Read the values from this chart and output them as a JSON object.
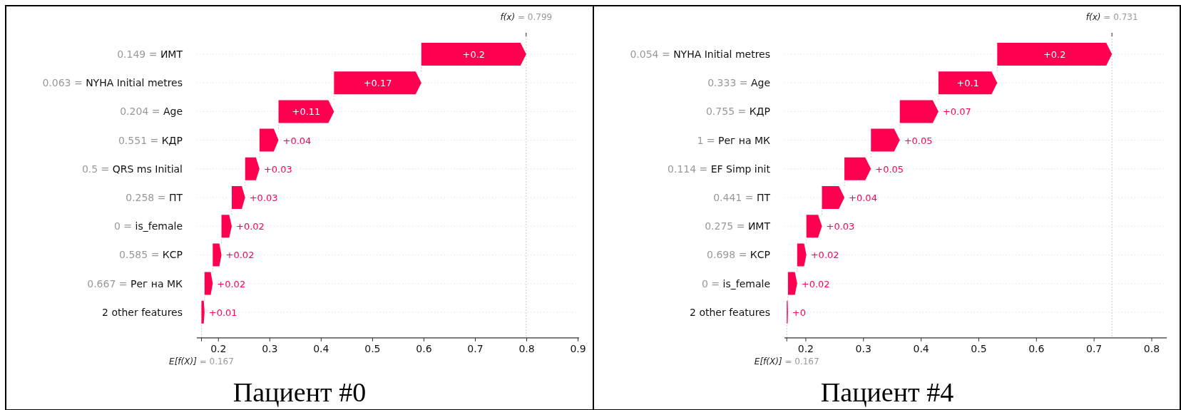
{
  "chart_data": [
    {
      "type": "bar",
      "orientation": "horizontal",
      "title": "Пациент #0",
      "categories": [
        "0.149 = ИМТ",
        "0.063 = NYHA Initial metres",
        "0.204 = Age",
        "0.551 = КДР",
        "0.5 = QRS ms Initial",
        "0.258 = ПТ",
        "0 = is_female",
        "0.585 = КСР",
        "0.667 = Рег на МК",
        "2 other features"
      ],
      "values": [
        0.204,
        0.17,
        0.108,
        0.037,
        0.028,
        0.026,
        0.02,
        0.017,
        0.016,
        0.006
      ],
      "base": [
        0.595,
        0.425,
        0.317,
        0.28,
        0.252,
        0.226,
        0.206,
        0.189,
        0.173,
        0.167
      ],
      "value_labels": [
        "+0.2",
        "+0.17",
        "+0.11",
        "+0.04",
        "+0.03",
        "+0.03",
        "+0.02",
        "+0.02",
        "+0.02",
        "+0.01"
      ],
      "color": "#ff0051",
      "xlim": [
        0.158,
        0.902
      ],
      "xticks": [
        0.2,
        0.3,
        0.4,
        0.5,
        0.6,
        0.7,
        0.8,
        0.9
      ],
      "grid": "y",
      "ref_lines": [
        {
          "axis": "x",
          "value": 0.799,
          "label": "f(x) = 0.799"
        },
        {
          "axis": "x",
          "value": 0.167,
          "label": "E[f(X)] = 0.167"
        }
      ]
    },
    {
      "type": "bar",
      "orientation": "horizontal",
      "title": "Пациент #4",
      "categories": [
        "0.054 = NYHA Initial metres",
        "0.333 = Age",
        "0.755 = КДР",
        "1 = Рег на МК",
        "0.114 = EF Simp init",
        "0.441 = ПТ",
        "0.275 = ИМТ",
        "0.698 = КСР",
        "0 = is_female",
        "2 other features"
      ],
      "values": [
        0.199,
        0.102,
        0.067,
        0.05,
        0.046,
        0.039,
        0.027,
        0.016,
        0.016,
        0.002
      ],
      "base": [
        0.532,
        0.43,
        0.363,
        0.313,
        0.267,
        0.228,
        0.201,
        0.185,
        0.169,
        0.167
      ],
      "value_labels": [
        "+0.2",
        "+0.1",
        "+0.07",
        "+0.05",
        "+0.05",
        "+0.04",
        "+0.03",
        "+0.02",
        "+0.02",
        "+0"
      ],
      "color": "#ff0051",
      "xlim": [
        0.163,
        0.826
      ],
      "xticks": [
        0.2,
        0.3,
        0.4,
        0.5,
        0.6,
        0.7,
        0.8
      ],
      "grid": "y",
      "ref_lines": [
        {
          "axis": "x",
          "value": 0.731,
          "label": "f(x) = 0.731"
        },
        {
          "axis": "x",
          "value": 0.167,
          "label": "E[f(X)] = 0.167"
        }
      ]
    }
  ]
}
